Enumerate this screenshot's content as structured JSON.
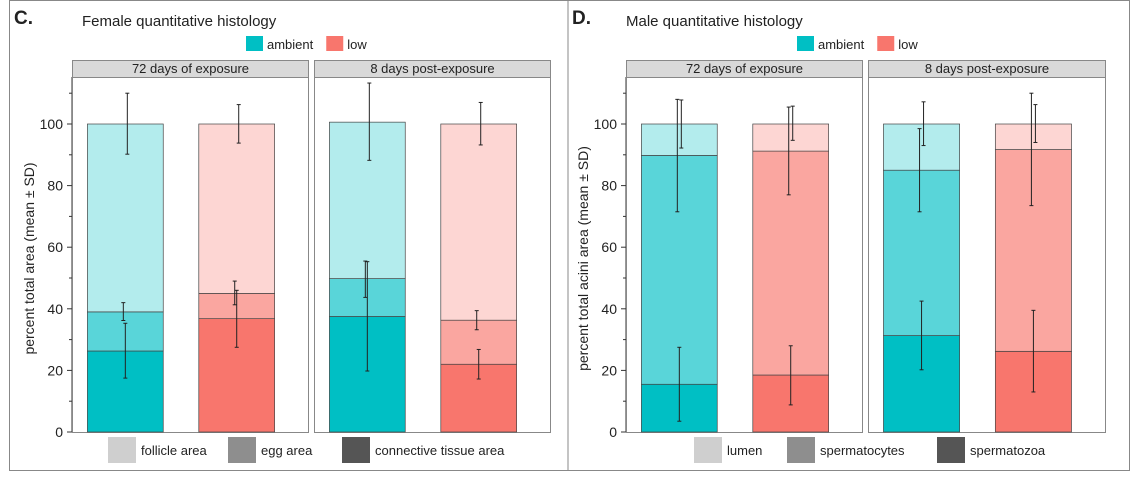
{
  "colors": {
    "ambient": "#00bfc4",
    "low": "#f8766d",
    "strip_fill": "#d9d9d9",
    "legend_gray_light": "#cfcfcf",
    "legend_gray_mid": "#8e8e8e",
    "legend_gray_dark": "#555555"
  },
  "chart_data": [
    {
      "type": "bar",
      "stacked": true,
      "panel_letter": "C.",
      "title": "Female quantitative histology",
      "ylabel": "percent total area  (mean ± SD)",
      "ylim": [
        0,
        115
      ],
      "yticks": [
        0,
        20,
        40,
        60,
        80,
        100
      ],
      "treatment_legend": [
        "ambient",
        "low"
      ],
      "component_legend": [
        "follicle area",
        "egg area",
        "connective tissue area"
      ],
      "facets": [
        {
          "label": "72 days of exposure",
          "bars": [
            {
              "treatment": "ambient",
              "segments": [
                {
                  "component": "connective tissue area",
                  "top": 26.3,
                  "err": [
                    17.5,
                    35.3
                  ]
                },
                {
                  "component": "egg area",
                  "top": 39.0,
                  "err": [
                    36.2,
                    42.0
                  ]
                },
                {
                  "component": "follicle area",
                  "top": 100,
                  "err": [
                    90.2,
                    110.0
                  ]
                }
              ]
            },
            {
              "treatment": "low",
              "segments": [
                {
                  "component": "connective tissue area",
                  "top": 36.8,
                  "err": [
                    27.5,
                    46.0
                  ]
                },
                {
                  "component": "egg area",
                  "top": 45.0,
                  "err": [
                    41.3,
                    49.0
                  ]
                },
                {
                  "component": "follicle area",
                  "top": 100,
                  "err": [
                    93.8,
                    106.3
                  ]
                }
              ]
            }
          ]
        },
        {
          "label": "8 days post-exposure",
          "bars": [
            {
              "treatment": "ambient",
              "segments": [
                {
                  "component": "connective tissue area",
                  "top": 37.5,
                  "err": [
                    19.8,
                    55.3
                  ]
                },
                {
                  "component": "egg area",
                  "top": 49.8,
                  "err": [
                    43.7,
                    55.5
                  ]
                },
                {
                  "component": "follicle area",
                  "top": 100.6,
                  "err": [
                    88.2,
                    113.3
                  ]
                }
              ]
            },
            {
              "treatment": "low",
              "segments": [
                {
                  "component": "connective tissue area",
                  "top": 22.0,
                  "err": [
                    17.2,
                    26.8
                  ]
                },
                {
                  "component": "egg area",
                  "top": 36.3,
                  "err": [
                    33.2,
                    39.4
                  ]
                },
                {
                  "component": "follicle area",
                  "top": 100,
                  "err": [
                    93.2,
                    107.0
                  ]
                }
              ]
            }
          ]
        }
      ]
    },
    {
      "type": "bar",
      "stacked": true,
      "panel_letter": "D.",
      "title": "Male quantitative histology",
      "ylabel": "percent total acini area  (mean ± SD)",
      "ylim": [
        0,
        115
      ],
      "yticks": [
        0,
        20,
        40,
        60,
        80,
        100
      ],
      "treatment_legend": [
        "ambient",
        "low"
      ],
      "component_legend": [
        "lumen",
        "spermatocytes",
        "spermatozoa"
      ],
      "facets": [
        {
          "label": "72 days of exposure",
          "bars": [
            {
              "treatment": "ambient",
              "segments": [
                {
                  "component": "spermatozoa",
                  "top": 15.5,
                  "err": [
                    3.5,
                    27.5
                  ]
                },
                {
                  "component": "spermatocytes",
                  "top": 89.8,
                  "err": [
                    71.5,
                    108.0
                  ]
                },
                {
                  "component": "lumen",
                  "top": 100,
                  "err": [
                    92.2,
                    107.8
                  ]
                }
              ]
            },
            {
              "treatment": "low",
              "segments": [
                {
                  "component": "spermatozoa",
                  "top": 18.5,
                  "err": [
                    8.8,
                    28.0
                  ]
                },
                {
                  "component": "spermatocytes",
                  "top": 91.2,
                  "err": [
                    77.0,
                    105.5
                  ]
                },
                {
                  "component": "lumen",
                  "top": 100,
                  "err": [
                    94.7,
                    105.8
                  ]
                }
              ]
            }
          ]
        },
        {
          "label": "8 days post-exposure",
          "bars": [
            {
              "treatment": "ambient",
              "segments": [
                {
                  "component": "spermatozoa",
                  "top": 31.3,
                  "err": [
                    20.2,
                    42.5
                  ]
                },
                {
                  "component": "spermatocytes",
                  "top": 85.0,
                  "err": [
                    71.5,
                    98.5
                  ]
                },
                {
                  "component": "lumen",
                  "top": 100,
                  "err": [
                    93.0,
                    107.2
                  ]
                }
              ]
            },
            {
              "treatment": "low",
              "segments": [
                {
                  "component": "spermatozoa",
                  "top": 26.2,
                  "err": [
                    13.0,
                    39.5
                  ]
                },
                {
                  "component": "spermatocytes",
                  "top": 91.7,
                  "err": [
                    73.5,
                    110.0
                  ]
                },
                {
                  "component": "lumen",
                  "top": 100,
                  "err": [
                    94.0,
                    106.3
                  ]
                }
              ]
            }
          ]
        }
      ]
    }
  ]
}
